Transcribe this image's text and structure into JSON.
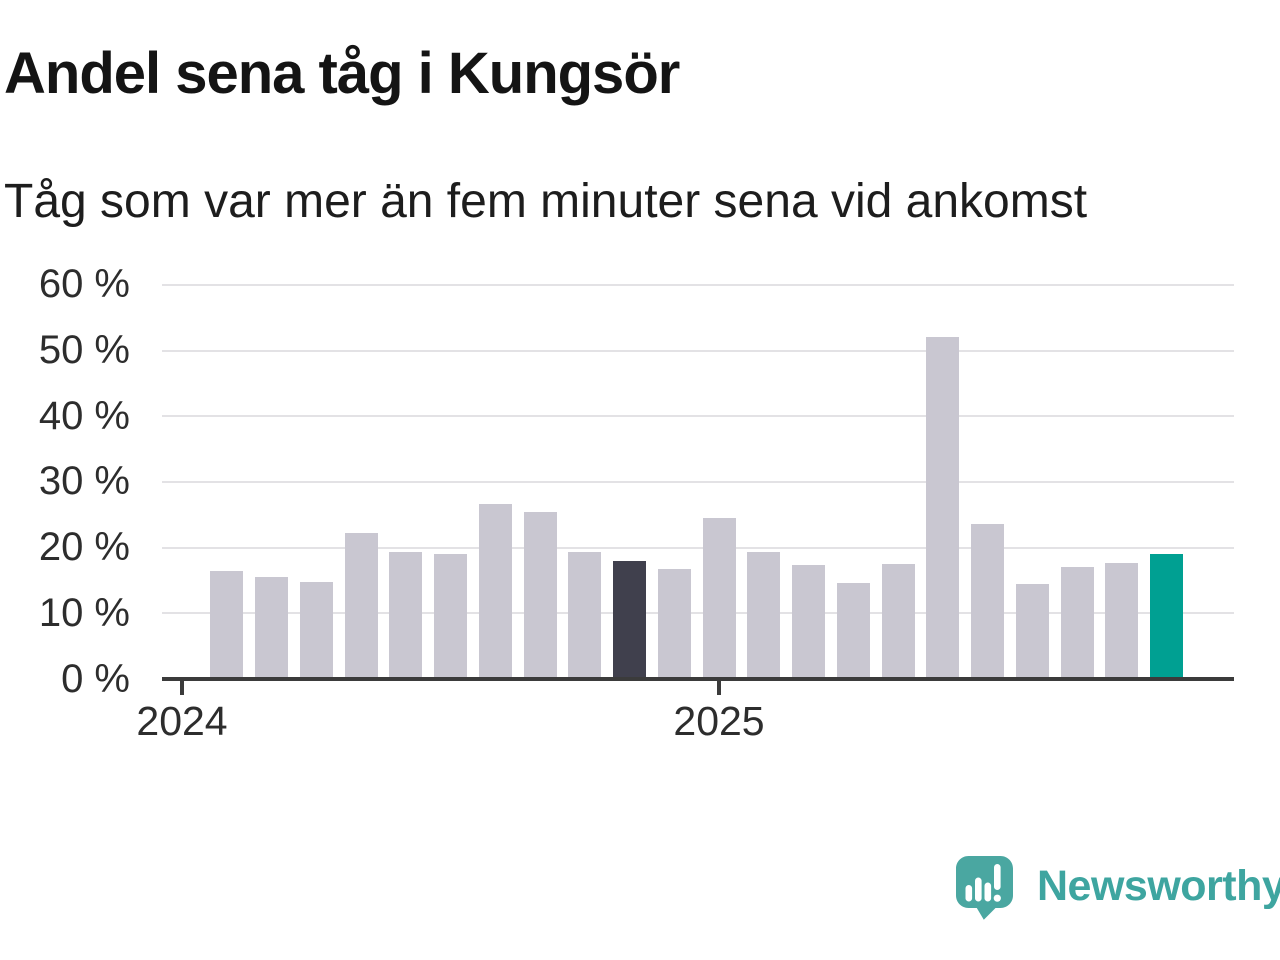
{
  "header": {
    "title": "Andel sena tåg i Kungsör",
    "subtitle": "Tåg som var mer än fem minuter sena vid ankomst"
  },
  "chart_data": {
    "type": "bar",
    "title": "Andel sena tåg i Kungsör",
    "subtitle": "Tåg som var mer än fem minuter sena vid ankomst",
    "xlabel": "",
    "ylabel": "",
    "unit": "%",
    "ylim": [
      0,
      60
    ],
    "grid": "horizontal",
    "legend": "none",
    "y_ticks": [
      {
        "value": 0,
        "label": "0 %"
      },
      {
        "value": 10,
        "label": "10 %"
      },
      {
        "value": 20,
        "label": "20 %"
      },
      {
        "value": 30,
        "label": "30 %"
      },
      {
        "value": 40,
        "label": "40 %"
      },
      {
        "value": 50,
        "label": "50 %"
      },
      {
        "value": 60,
        "label": "60 %"
      }
    ],
    "x_ticks": [
      {
        "slot": 0,
        "label": "2024"
      },
      {
        "slot": 12,
        "label": "2025"
      }
    ],
    "bars": [
      {
        "slot": 1,
        "value": 16.5,
        "kind": "default"
      },
      {
        "slot": 2,
        "value": 15.5,
        "kind": "default"
      },
      {
        "slot": 3,
        "value": 14.8,
        "kind": "default"
      },
      {
        "slot": 4,
        "value": 22.2,
        "kind": "default"
      },
      {
        "slot": 5,
        "value": 19.4,
        "kind": "default"
      },
      {
        "slot": 6,
        "value": 19.1,
        "kind": "default"
      },
      {
        "slot": 7,
        "value": 26.7,
        "kind": "default"
      },
      {
        "slot": 8,
        "value": 25.4,
        "kind": "default"
      },
      {
        "slot": 9,
        "value": 19.3,
        "kind": "highlight_dark_prev"
      },
      {
        "slot": 9,
        "value": 0,
        "kind": "spacer"
      },
      {
        "slot": 10,
        "value": 18.0,
        "kind": "highlight_dark"
      },
      {
        "slot": 11,
        "value": 16.8,
        "kind": "default"
      },
      {
        "slot": 12,
        "value": 24.5,
        "kind": "default"
      },
      {
        "slot": 13,
        "value": 19.3,
        "kind": "default"
      },
      {
        "slot": 14,
        "value": 17.3,
        "kind": "default"
      },
      {
        "slot": 15,
        "value": 14.6,
        "kind": "default"
      },
      {
        "slot": 16,
        "value": 17.5,
        "kind": "default"
      },
      {
        "slot": 17,
        "value": 52.1,
        "kind": "default"
      },
      {
        "slot": 18,
        "value": 23.6,
        "kind": "default"
      },
      {
        "slot": 19,
        "value": 14.4,
        "kind": "default"
      },
      {
        "slot": 20,
        "value": 17.1,
        "kind": "default"
      },
      {
        "slot": 21,
        "value": 17.7,
        "kind": "default"
      },
      {
        "slot": 22,
        "value": 19.0,
        "kind": "highlight_teal"
      }
    ],
    "colors": {
      "default": "#c9c7d1",
      "highlight_dark_prev": "#c9c7d1",
      "highlight_dark": "#40404d",
      "highlight_teal": "#00a092",
      "axis": "#3b3b3b",
      "gridline": "#e3e2e5"
    }
  },
  "branding": {
    "name": "Newsworthy",
    "color": "#3ea5a0",
    "icon_color": "#4aa7a1"
  }
}
